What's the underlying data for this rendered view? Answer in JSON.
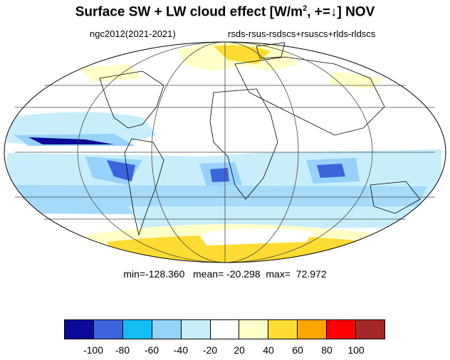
{
  "title": {
    "main": "Surface SW + LW cloud effect [W/m",
    "sup": "2",
    "rest": ", +=↓]  NOV"
  },
  "subtitle": {
    "left": "ngc2012(2021-2021)",
    "right": "rsds-rsus-rsdscs+rsuscs+rlds-rldscs"
  },
  "stats": "min=-128.360   mean= -20.298  max=  72.972",
  "colorbar": {
    "colors": [
      "#0a0a96",
      "#3c64dc",
      "#12bef5",
      "#96d2fa",
      "#c8eefc",
      "#ffffff",
      "#ffffc8",
      "#ffdc32",
      "#ffa500",
      "#ff0000",
      "#a52828"
    ],
    "labels": [
      "-100",
      "-80",
      "-60",
      "-40",
      "-20",
      "20",
      "40",
      "60",
      "80",
      "100"
    ]
  },
  "map": {
    "projection": "Mollweide",
    "graticule": "lines every 60 degrees longitude, 30 degrees latitude"
  }
}
